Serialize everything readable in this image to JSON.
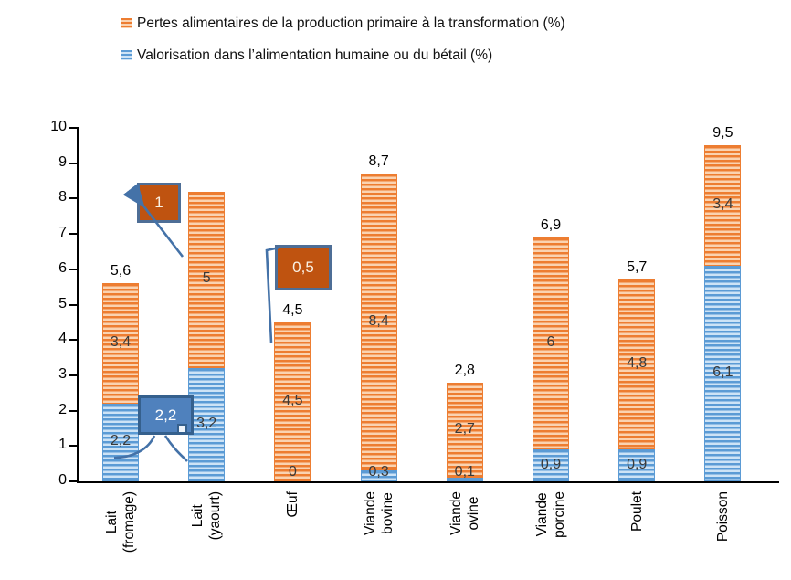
{
  "legend": {
    "items": [
      {
        "label": "Pertes alimentaires de la production primaire à la transformation (%)",
        "color": "#ED7D31",
        "color_light": "#FAD3B1"
      },
      {
        "label": "Valorisation dans l’alimentation humaine ou du bétail (%)",
        "color": "#5B9BD5",
        "color_light": "#CDE3F6"
      }
    ]
  },
  "chart_data": {
    "type": "bar",
    "stacked": true,
    "title": "",
    "categories": [
      "Lait\n(fromage)",
      "Lait\n(yaourt)",
      "Œuf",
      "Viande\nbovine",
      "Viande\novine",
      "Viande\nporcine",
      "Poulet",
      "Poisson"
    ],
    "series": [
      {
        "name": "Valorisation dans l’alimentation humaine ou du bétail (%)",
        "color": "#5B9BD5",
        "color_light": "#CDE3F6",
        "values": [
          2.2,
          3.2,
          0,
          0.3,
          0.1,
          0.9,
          0.9,
          6.1
        ],
        "value_labels": [
          "2,2",
          "3,2",
          "0",
          "0,3",
          "0,1",
          "0,9",
          "0,9",
          "6,1"
        ]
      },
      {
        "name": "Pertes alimentaires de la production primaire à la transformation (%)",
        "color": "#ED7D31",
        "color_light": "#FAD3B1",
        "values": [
          3.4,
          5,
          4.5,
          8.4,
          2.7,
          6,
          4.8,
          3.4
        ],
        "value_labels": [
          "3,4",
          "5",
          "4,5",
          "8,4",
          "2,7",
          "6",
          "4,8",
          "3,4"
        ]
      }
    ],
    "total_labels": [
      "5,6",
      "",
      "4,5",
      "8,7",
      "2,8",
      "6,9",
      "5,7",
      "9,5"
    ],
    "ylim": [
      0,
      10
    ],
    "yticks": [
      "0",
      "1",
      "2",
      "3",
      "4",
      "5",
      "6",
      "7",
      "8",
      "9",
      "10"
    ],
    "grid": false,
    "legend_position": "top-left",
    "annotations": [
      {
        "text": "1",
        "fill": "#BF5310",
        "border": "#4E6E96"
      },
      {
        "text": "2,2",
        "fill": "#4F81BD",
        "border": "#35608D"
      },
      {
        "text": "0,5",
        "fill": "#BF5310",
        "border": "#4E6E96"
      }
    ],
    "annotation_line_color": "#4472A8"
  }
}
